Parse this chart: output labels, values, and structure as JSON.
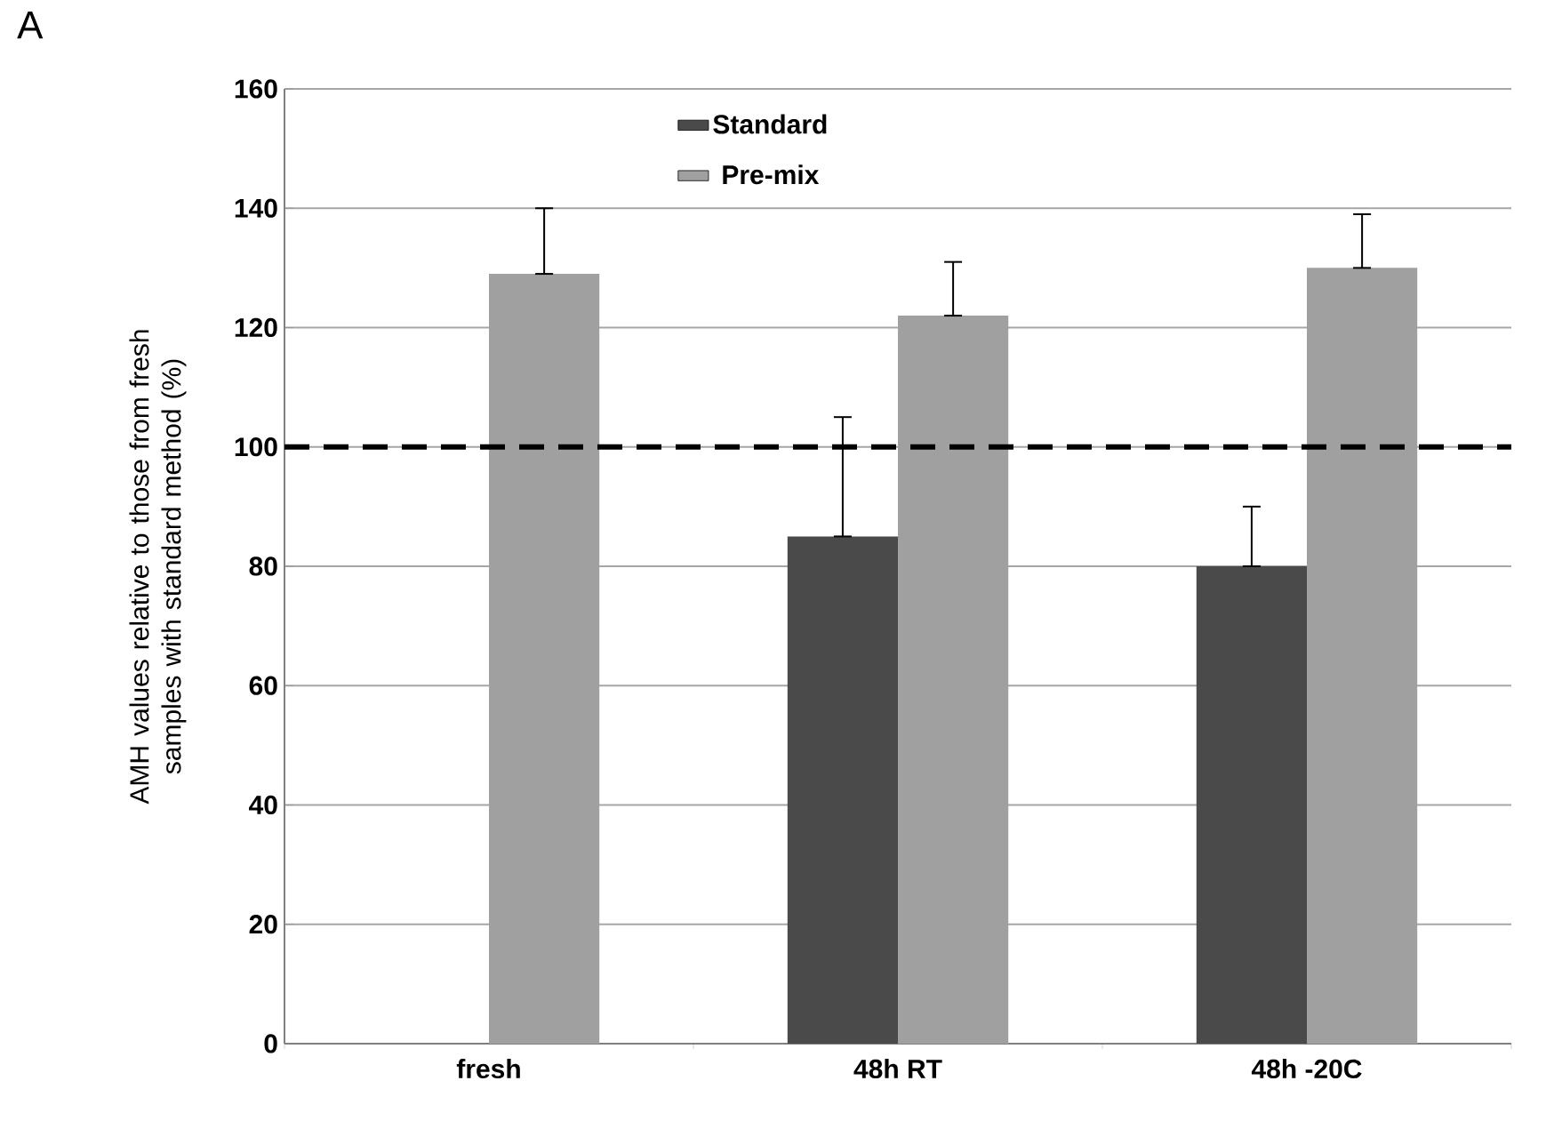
{
  "chart_data": {
    "type": "bar",
    "ylabel": "AMH values relative to those from fresh samples with standard method (%)",
    "categories": [
      "fresh",
      "48h RT",
      "48h -20C"
    ],
    "series": [
      {
        "name": "Standard",
        "color": "#4a4a4a",
        "values": [
          null,
          85,
          80
        ],
        "errors": [
          null,
          [
            85,
            105
          ],
          [
            80,
            90
          ]
        ]
      },
      {
        "name": "Pre-mix",
        "color": "#a0a0a0",
        "values": [
          129,
          122,
          130
        ],
        "errors": [
          [
            129,
            140
          ],
          [
            122,
            131
          ],
          [
            130,
            139
          ]
        ]
      }
    ],
    "ylim": [
      0,
      160
    ],
    "yticks": [
      0,
      20,
      40,
      60,
      80,
      100,
      120,
      140,
      160
    ],
    "grid": "y",
    "legend": "top",
    "ref_lines": [
      {
        "axis": "y",
        "value": 100,
        "color": "#000000",
        "line_style": "dashed"
      }
    ],
    "annotations": [
      "A"
    ]
  }
}
